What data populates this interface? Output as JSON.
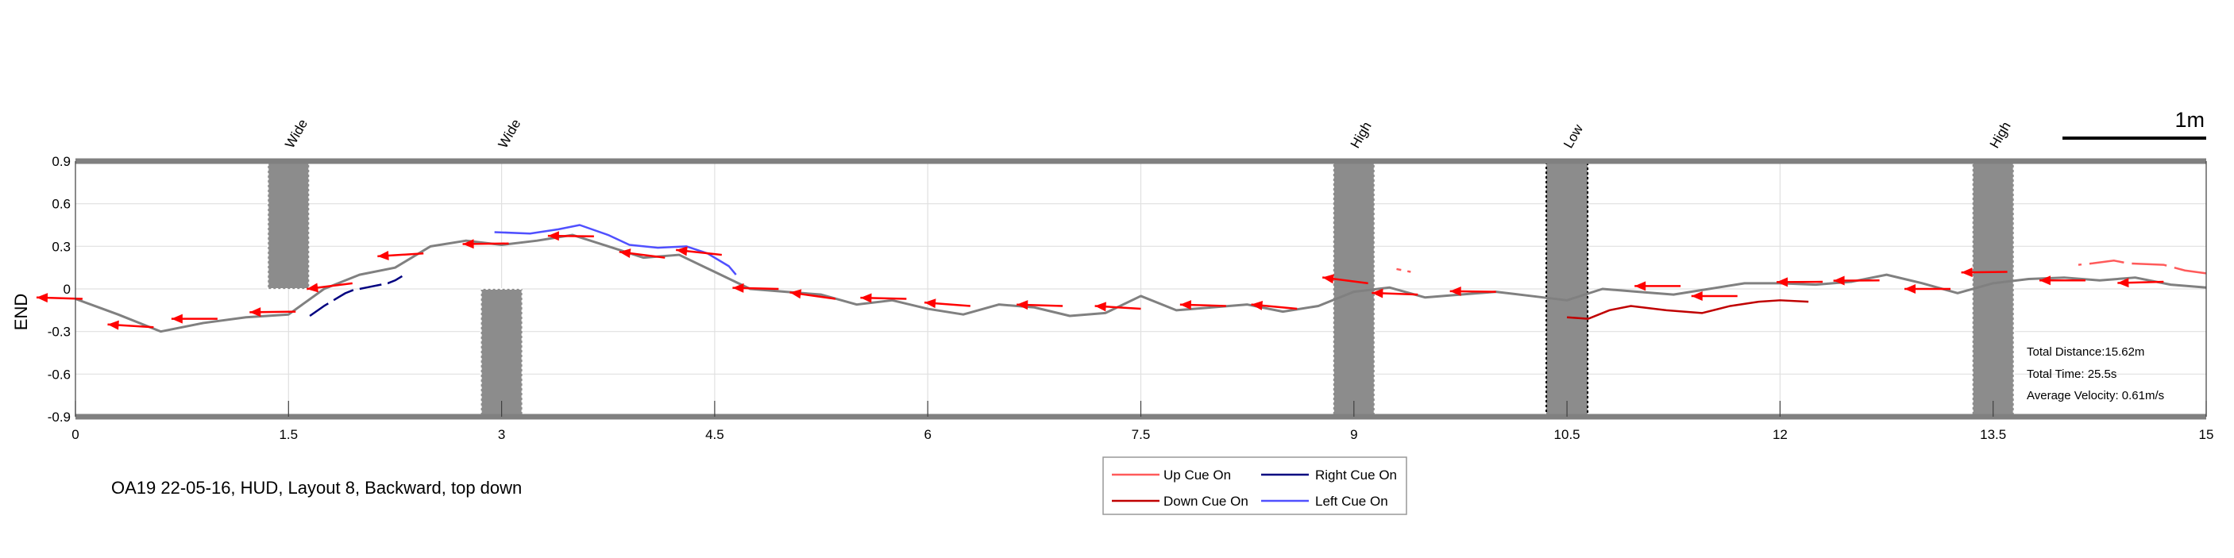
{
  "chart_data": {
    "type": "line",
    "title": "OA19 22-05-16, HUD, Layout 8, Backward, top down",
    "xlabel": "",
    "ylabel": "END",
    "xlim": [
      0,
      15
    ],
    "ylim": [
      -0.9,
      0.9
    ],
    "x_ticks": [
      0,
      1.5,
      3,
      4.5,
      6,
      7.5,
      9,
      10.5,
      12,
      13.5,
      15
    ],
    "x_tick_labels": [
      "0",
      "1.5",
      "3",
      "4.5",
      "6",
      "7.5",
      "9",
      "10.5",
      "12",
      "13.5",
      "15"
    ],
    "y_ticks": [
      -0.9,
      -0.6,
      -0.3,
      0,
      0.3,
      0.6,
      0.9
    ],
    "y_tick_labels": [
      "-0.9",
      "-0.6",
      "-0.3",
      "0",
      "0.3",
      "0.6",
      "0.9"
    ],
    "grid": true,
    "scale_bar": {
      "label": "1m",
      "length": 1
    },
    "obstacles": [
      {
        "label": "Wide",
        "x": 1.5,
        "y_from": 0,
        "y_to": 0.9
      },
      {
        "label": "Wide",
        "x": 3,
        "y_from": -0.9,
        "y_to": 0
      },
      {
        "label": "High",
        "x": 9,
        "y_from": -0.9,
        "y_to": 0.9
      },
      {
        "label": "Low",
        "x": 10.5,
        "y_from": -0.9,
        "y_to": 0.9
      },
      {
        "label": "High",
        "x": 13.5,
        "y_from": -0.9,
        "y_to": 0.9
      }
    ],
    "stats": [
      "Total Distance:15.62m",
      "Total Time: 25.5s",
      "Average Velocity: 0.61m/s"
    ],
    "legend": [
      "Up Cue On",
      "Right Cue On",
      "Down Cue On",
      "Left Cue On"
    ],
    "colors": {
      "path": "#808080",
      "up_cue": "#ff5a5a",
      "right_cue": "#000080",
      "down_cue": "#c00000",
      "left_cue": "#5050ff",
      "arrow": "#ff0000",
      "obstacle": "#8c8c8c"
    },
    "series": [
      {
        "name": "path",
        "x": [
          0,
          0.3,
          0.6,
          0.9,
          1.2,
          1.5,
          1.75,
          2.0,
          2.25,
          2.5,
          2.75,
          3.0,
          3.25,
          3.5,
          3.75,
          4.0,
          4.25,
          4.5,
          4.75,
          5.0,
          5.25,
          5.5,
          5.75,
          6.0,
          6.25,
          6.5,
          6.75,
          7.0,
          7.25,
          7.5,
          7.75,
          8.0,
          8.25,
          8.5,
          8.75,
          9.0,
          9.25,
          9.5,
          9.75,
          10.0,
          10.25,
          10.5,
          10.75,
          11.0,
          11.25,
          11.5,
          11.75,
          12.0,
          12.25,
          12.5,
          12.75,
          13.0,
          13.25,
          13.5,
          13.75,
          14.0,
          14.25,
          14.5,
          14.75,
          15.0
        ],
        "y": [
          -0.07,
          -0.18,
          -0.3,
          -0.24,
          -0.2,
          -0.18,
          0.0,
          0.1,
          0.15,
          0.3,
          0.34,
          0.31,
          0.34,
          0.38,
          0.3,
          0.22,
          0.24,
          0.12,
          0.0,
          -0.02,
          -0.04,
          -0.11,
          -0.08,
          -0.14,
          -0.18,
          -0.11,
          -0.13,
          -0.19,
          -0.17,
          -0.05,
          -0.15,
          -0.13,
          -0.11,
          -0.16,
          -0.12,
          -0.02,
          0.01,
          -0.06,
          -0.04,
          -0.02,
          -0.05,
          -0.08,
          0.0,
          -0.02,
          -0.04,
          0.0,
          0.04,
          0.04,
          0.03,
          0.05,
          0.1,
          0.04,
          -0.03,
          0.04,
          0.07,
          0.08,
          0.06,
          0.08,
          0.03,
          0.01
        ]
      },
      {
        "name": "Left Cue On",
        "x": [
          2.95,
          3.2,
          3.4,
          3.55,
          3.75,
          3.9,
          4.1,
          4.3,
          4.45,
          4.6,
          4.65
        ],
        "y": [
          0.4,
          0.39,
          0.42,
          0.45,
          0.38,
          0.31,
          0.29,
          0.3,
          0.25,
          0.16,
          0.1
        ]
      },
      {
        "name": "Right Cue On",
        "x": [
          1.65,
          1.75,
          1.85,
          1.9,
          1.95,
          2.05,
          2.15,
          2.2,
          2.25,
          2.3
        ],
        "y": [
          -0.19,
          -0.12,
          -0.06,
          -0.03,
          -0.01,
          0.01,
          0.03,
          0.04,
          0.06,
          0.09
        ]
      },
      {
        "name": "Down Cue On",
        "x": [
          10.5,
          10.65,
          10.8,
          10.95,
          11.2,
          11.45,
          11.65,
          11.85,
          12.0,
          12.2
        ],
        "y": [
          -0.2,
          -0.21,
          -0.15,
          -0.12,
          -0.15,
          -0.17,
          -0.12,
          -0.09,
          -0.08,
          -0.09
        ]
      },
      {
        "name": "Up Cue On",
        "x": [
          9.3,
          9.4,
          14.1,
          14.2,
          14.35,
          14.45,
          14.7,
          14.85,
          15.0
        ],
        "y": [
          0.14,
          0.12,
          0.17,
          0.18,
          0.2,
          0.18,
          0.17,
          0.13,
          0.11
        ]
      }
    ],
    "arrows": {
      "length": 0.32,
      "points": [
        {
          "x": 0.05,
          "y": -0.07,
          "angle": 175
        },
        {
          "x": 0.55,
          "y": -0.27,
          "angle": 170
        },
        {
          "x": 1.0,
          "y": -0.21,
          "angle": 180
        },
        {
          "x": 1.55,
          "y": -0.16,
          "angle": 182
        },
        {
          "x": 1.95,
          "y": 0.04,
          "angle": 200
        },
        {
          "x": 2.45,
          "y": 0.25,
          "angle": 190
        },
        {
          "x": 3.05,
          "y": 0.32,
          "angle": 182
        },
        {
          "x": 3.65,
          "y": 0.37,
          "angle": 178
        },
        {
          "x": 4.15,
          "y": 0.22,
          "angle": 160
        },
        {
          "x": 4.55,
          "y": 0.24,
          "angle": 163
        },
        {
          "x": 4.95,
          "y": 0.0,
          "angle": 176
        },
        {
          "x": 5.35,
          "y": -0.07,
          "angle": 158
        },
        {
          "x": 5.85,
          "y": -0.07,
          "angle": 176
        },
        {
          "x": 6.3,
          "y": -0.12,
          "angle": 168
        },
        {
          "x": 6.95,
          "y": -0.12,
          "angle": 175
        },
        {
          "x": 7.5,
          "y": -0.14,
          "angle": 170
        },
        {
          "x": 8.1,
          "y": -0.12,
          "angle": 175
        },
        {
          "x": 8.6,
          "y": -0.14,
          "angle": 165
        },
        {
          "x": 9.1,
          "y": 0.04,
          "angle": 160
        },
        {
          "x": 9.45,
          "y": -0.04,
          "angle": 174
        },
        {
          "x": 10.0,
          "y": -0.02,
          "angle": 178
        },
        {
          "x": 11.3,
          "y": 0.02,
          "angle": 180
        },
        {
          "x": 11.7,
          "y": -0.05,
          "angle": 180
        },
        {
          "x": 12.3,
          "y": 0.05,
          "angle": 181
        },
        {
          "x": 12.7,
          "y": 0.06,
          "angle": 181
        },
        {
          "x": 13.2,
          "y": 0.0,
          "angle": 180
        },
        {
          "x": 13.6,
          "y": 0.12,
          "angle": 182
        },
        {
          "x": 14.15,
          "y": 0.06,
          "angle": 180
        },
        {
          "x": 14.7,
          "y": 0.05,
          "angle": 184
        }
      ]
    }
  }
}
